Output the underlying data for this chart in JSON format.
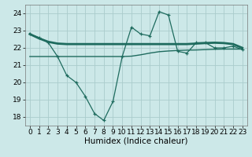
{
  "title": "",
  "xlabel": "Humidex (Indice chaleur)",
  "ylabel": "",
  "x": [
    0,
    1,
    2,
    3,
    4,
    5,
    6,
    7,
    8,
    9,
    10,
    11,
    12,
    13,
    14,
    15,
    16,
    17,
    18,
    19,
    20,
    21,
    22,
    23
  ],
  "y_main": [
    22.8,
    22.6,
    22.3,
    21.5,
    20.4,
    20.0,
    19.2,
    18.2,
    17.8,
    18.9,
    21.5,
    23.2,
    22.8,
    22.7,
    24.1,
    23.9,
    21.8,
    21.7,
    22.3,
    22.3,
    22.0,
    22.0,
    22.1,
    21.9
  ],
  "y_upper": [
    22.8,
    22.55,
    22.35,
    22.25,
    22.22,
    22.22,
    22.22,
    22.22,
    22.22,
    22.22,
    22.22,
    22.22,
    22.22,
    22.22,
    22.22,
    22.22,
    22.22,
    22.22,
    22.25,
    22.28,
    22.3,
    22.28,
    22.22,
    22.0
  ],
  "y_lower": [
    21.5,
    21.5,
    21.5,
    21.5,
    21.5,
    21.5,
    21.5,
    21.5,
    21.5,
    21.5,
    21.5,
    21.52,
    21.6,
    21.7,
    21.78,
    21.82,
    21.85,
    21.87,
    21.88,
    21.9,
    21.92,
    21.93,
    21.93,
    21.93
  ],
  "line_color": "#1e6b5e",
  "bg_color": "#cce8e8",
  "grid_color": "#aacccc",
  "ylim": [
    17.5,
    24.5
  ],
  "yticks": [
    18,
    19,
    20,
    21,
    22,
    23,
    24
  ],
  "xlim": [
    -0.5,
    23.5
  ],
  "xticks": [
    0,
    1,
    2,
    3,
    4,
    5,
    6,
    7,
    8,
    9,
    10,
    11,
    12,
    13,
    14,
    15,
    16,
    17,
    18,
    19,
    20,
    21,
    22,
    23
  ],
  "tick_fontsize": 6.5,
  "xlabel_fontsize": 7.5,
  "marker": "+",
  "marker_size": 3.5,
  "lw_main": 0.9,
  "lw_upper": 2.0,
  "lw_lower": 1.0
}
